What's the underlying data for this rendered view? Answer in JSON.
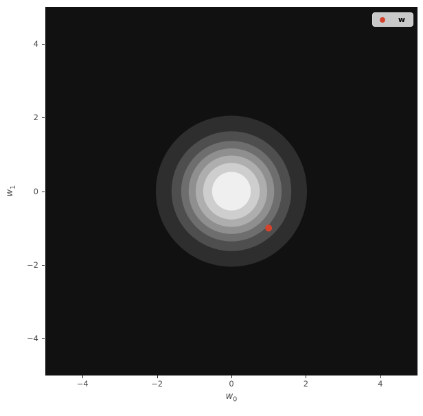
{
  "figure": {
    "background": "#ffffff",
    "plot_background": "#111111"
  },
  "axes": {
    "xlabel_base": "w",
    "xlabel_sub": "0",
    "ylabel_base": "w",
    "ylabel_sub": "1"
  },
  "legend": {
    "label": "w",
    "marker_color": "#d6432c",
    "background": "#c9c9c9",
    "position": "upper right"
  },
  "chart_data": {
    "type": "contour",
    "title": "",
    "xlabel": "w_0",
    "ylabel": "w_1",
    "xlim": [
      -5,
      5
    ],
    "ylim": [
      -5,
      5
    ],
    "grid": false,
    "x_ticks": [
      -4,
      -2,
      0,
      2,
      4
    ],
    "x_tick_labels": [
      "−4",
      "−2",
      "0",
      "2",
      "4"
    ],
    "y_ticks": [
      4,
      2,
      0,
      -2,
      -4
    ],
    "y_tick_labels": [
      "4",
      "2",
      "0",
      "−2",
      "−4"
    ],
    "contours": {
      "description": "filled contours of an isotropic 2D Gaussian density, circular bands",
      "center": [
        0,
        0
      ],
      "levels_radii": [
        2.03,
        1.61,
        1.35,
        1.15,
        0.96,
        0.76,
        0.52
      ],
      "band_colors": [
        "#111111",
        "#2e2e2e",
        "#4e4e4e",
        "#6e6e6e",
        "#8f8f8f",
        "#aeaeae",
        "#cecece",
        "#efefef"
      ]
    },
    "scatter": {
      "name": "w",
      "points": [
        [
          1,
          -1
        ]
      ],
      "color": "#d6432c",
      "marker_radius_px": 5
    },
    "legend": {
      "entries": [
        "w"
      ],
      "position": "upper right"
    }
  }
}
